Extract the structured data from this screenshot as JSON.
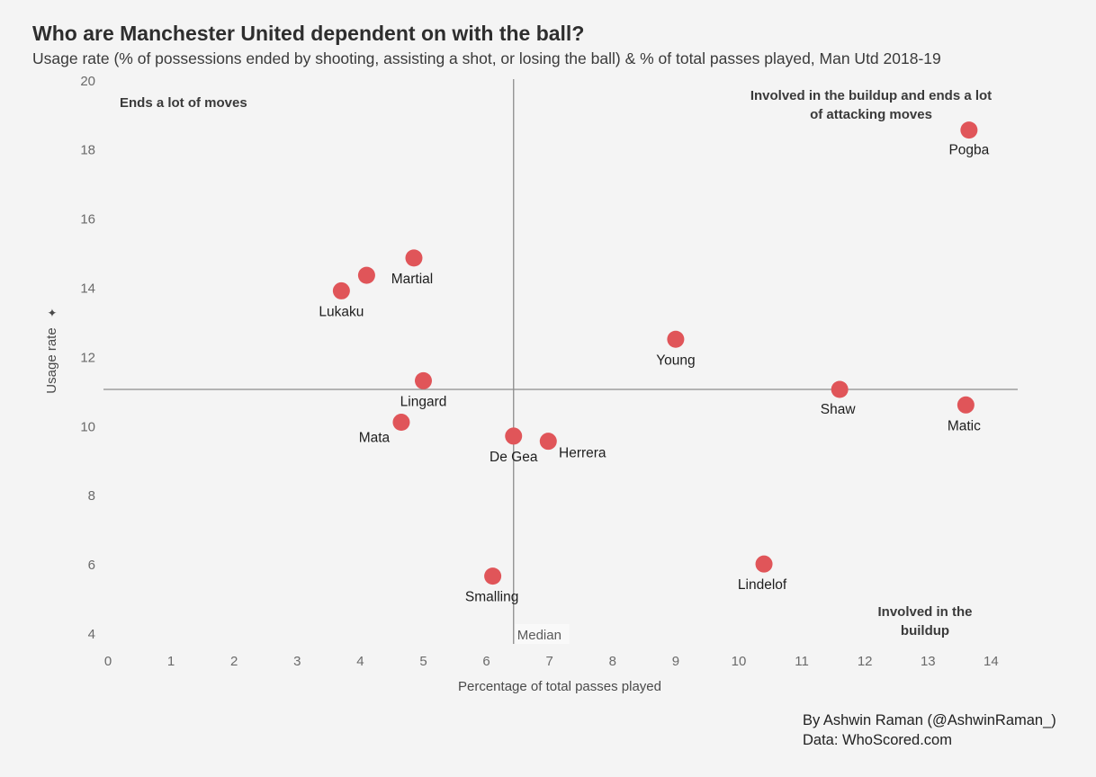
{
  "header": {
    "title": "Who are Manchester United dependent on with the ball?",
    "subtitle": "Usage rate (% of possessions ended by shooting, assisting a shot, or losing the ball) & % of total passes played, Man Utd 2018-19"
  },
  "footer": {
    "author": "By Ashwin Raman (@AshwinRaman_)",
    "source": "Data: WhoScored.com"
  },
  "colors": {
    "point": "#e05559",
    "line": "#8c8c8c",
    "background": "#f4f4f4"
  },
  "chart_data": {
    "type": "scatter",
    "xlabel": "Percentage of total passes played",
    "ylabel": "Usage rate",
    "xlim": [
      0,
      14.5
    ],
    "ylim": [
      4,
      20
    ],
    "xticks": [
      0,
      1,
      2,
      3,
      4,
      5,
      6,
      7,
      8,
      9,
      10,
      11,
      12,
      13,
      14
    ],
    "yticks": [
      4,
      6,
      8,
      10,
      12,
      14,
      16,
      18,
      20
    ],
    "median_x": 6.43,
    "median_y": 11.1,
    "median_label": "Median",
    "points": [
      {
        "name": "Pogba",
        "x": 13.65,
        "y": 18.6
      },
      {
        "name": "Martial",
        "x": 4.85,
        "y": 14.9
      },
      {
        "name": "",
        "x": 4.1,
        "y": 14.4
      },
      {
        "name": "Lukaku",
        "x": 3.7,
        "y": 13.95
      },
      {
        "name": "Young",
        "x": 9.0,
        "y": 12.55
      },
      {
        "name": "Lingard",
        "x": 5.0,
        "y": 11.35
      },
      {
        "name": "Shaw",
        "x": 11.6,
        "y": 11.1
      },
      {
        "name": "Matic",
        "x": 13.6,
        "y": 10.65
      },
      {
        "name": "Mata",
        "x": 4.65,
        "y": 10.15
      },
      {
        "name": "De Gea",
        "x": 6.43,
        "y": 9.75
      },
      {
        "name": "Herrera",
        "x": 6.98,
        "y": 9.6
      },
      {
        "name": "Lindelof",
        "x": 10.4,
        "y": 6.05
      },
      {
        "name": "Smalling",
        "x": 6.1,
        "y": 5.7
      }
    ],
    "annotations": [
      {
        "id": "top-left",
        "lines": [
          "Ends a lot of moves"
        ]
      },
      {
        "id": "top-right",
        "lines": [
          "Involved in the buildup and ends a lot",
          "of attacking moves"
        ]
      },
      {
        "id": "bottom-right",
        "lines": [
          "Involved in the",
          "buildup"
        ]
      }
    ]
  }
}
